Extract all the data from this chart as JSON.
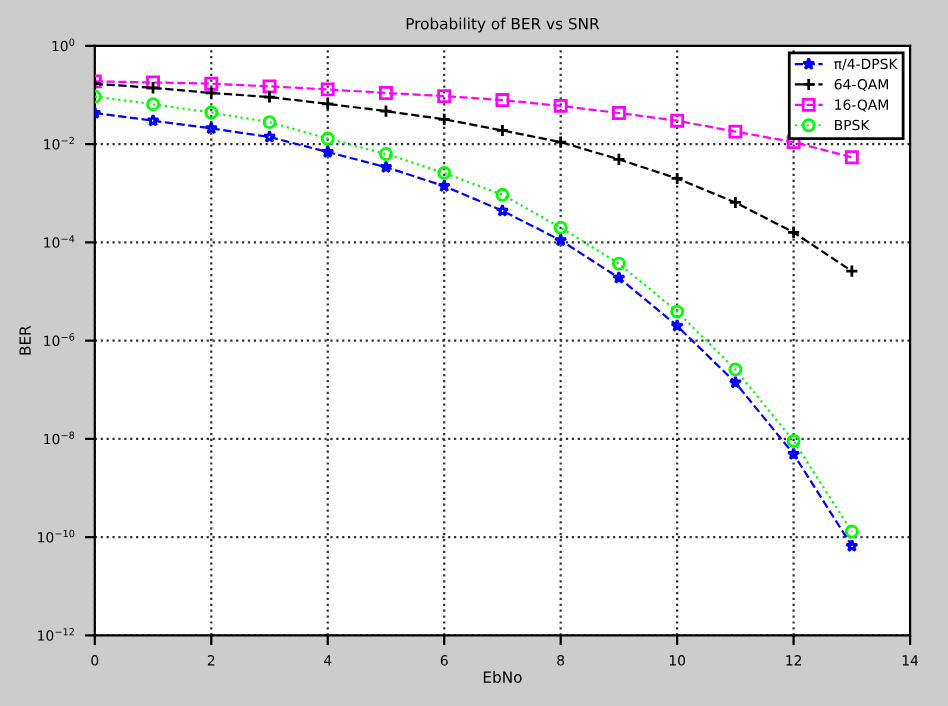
{
  "chart_data": {
    "type": "line",
    "title": "Probability of BER vs SNR",
    "xlabel": "EbNo",
    "ylabel": "BER",
    "x": [
      0,
      1,
      2,
      3,
      4,
      5,
      6,
      7,
      8,
      9,
      10,
      11,
      12,
      13
    ],
    "series": [
      {
        "name": "π/4-DPSK",
        "color": "#0000ff",
        "marker": "star",
        "line_style": "dashed",
        "values": [
          0.043,
          0.03,
          0.021,
          0.014,
          0.0069,
          0.0034,
          0.0014,
          0.00044,
          0.00011,
          1.9e-05,
          2e-06,
          1.4e-07,
          4.9e-09,
          6.6e-11
        ]
      },
      {
        "name": "64-QAM",
        "color": "#000000",
        "marker": "cross",
        "line_style": "dashed",
        "values": [
          0.17,
          0.14,
          0.11,
          0.091,
          0.066,
          0.047,
          0.032,
          0.019,
          0.011,
          0.0049,
          0.002,
          0.00065,
          0.00016,
          2.6e-05
        ]
      },
      {
        "name": "16-QAM",
        "color": "#ff00ff",
        "marker": "square",
        "line_style": "dashed",
        "values": [
          0.19,
          0.18,
          0.17,
          0.15,
          0.13,
          0.11,
          0.095,
          0.079,
          0.06,
          0.043,
          0.03,
          0.018,
          0.011,
          0.0054
        ]
      },
      {
        "name": "BPSK",
        "color": "#00ff00",
        "marker": "circle",
        "line_style": "dotted",
        "values": [
          0.093,
          0.065,
          0.044,
          0.028,
          0.013,
          0.0063,
          0.0026,
          0.00093,
          0.0002,
          3.7e-05,
          3.9e-06,
          2.6e-07,
          9.1e-09,
          1.3e-10
        ]
      }
    ],
    "log": "y",
    "xlim": [
      0,
      14
    ],
    "xticks": [
      0,
      2,
      4,
      6,
      8,
      10,
      12,
      14
    ],
    "ylim": [
      1e-12,
      1
    ],
    "yticks": [
      {
        "value": 1e-12,
        "label": "10$^{−12}$"
      },
      {
        "value": 1e-10,
        "label": "10$^{−10}$"
      },
      {
        "value": 1e-08,
        "label": "10$^{−8}$"
      },
      {
        "value": 1e-06,
        "label": "10$^{−6}$"
      },
      {
        "value": 0.0001,
        "label": "10$^{−4}$"
      },
      {
        "value": 0.01,
        "label": "10$^{−2}$"
      },
      {
        "value": 1,
        "label": "10$^{0}$"
      }
    ],
    "grid": true,
    "legend": "top right"
  }
}
